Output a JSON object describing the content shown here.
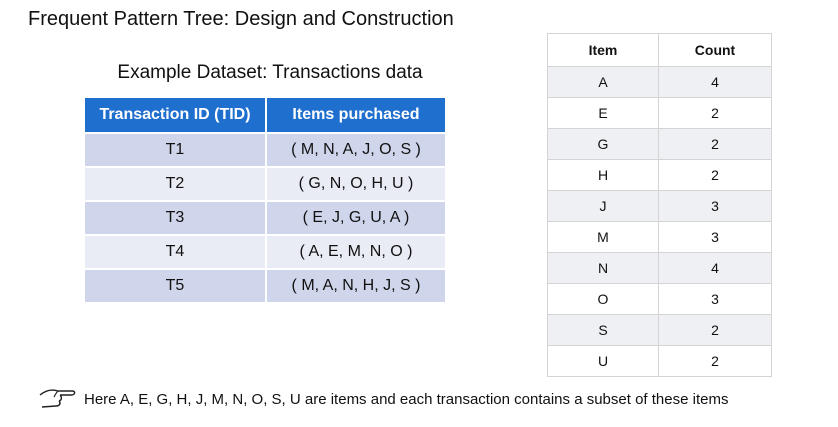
{
  "title": "Frequent Pattern Tree: Design and Construction",
  "subtitle": "Example Dataset: Transactions data",
  "transactions": {
    "headers": [
      "Transaction ID (TID)",
      "Items purchased"
    ],
    "rows": [
      [
        "T1",
        "( M, N, A, J, O, S )"
      ],
      [
        "T2",
        "( G, N, O, H, U )"
      ],
      [
        "T3",
        "( E, J, G, U, A )"
      ],
      [
        "T4",
        "( A, E, M, N, O )"
      ],
      [
        "T5",
        "( M, A, N, H, J, S )"
      ]
    ],
    "header_color": "#1f6fcf"
  },
  "counts": {
    "headers": [
      "Item",
      "Count"
    ],
    "rows": [
      [
        "A",
        "4"
      ],
      [
        "E",
        "2"
      ],
      [
        "G",
        "2"
      ],
      [
        "H",
        "2"
      ],
      [
        "J",
        "3"
      ],
      [
        "M",
        "3"
      ],
      [
        "N",
        "4"
      ],
      [
        "O",
        "3"
      ],
      [
        "S",
        "2"
      ],
      [
        "U",
        "2"
      ]
    ]
  },
  "note": {
    "icon": "pointing-hand-icon",
    "text": "Here A, E, G, H, J, M, N, O, S, U are items and each transaction contains a subset of these items"
  }
}
